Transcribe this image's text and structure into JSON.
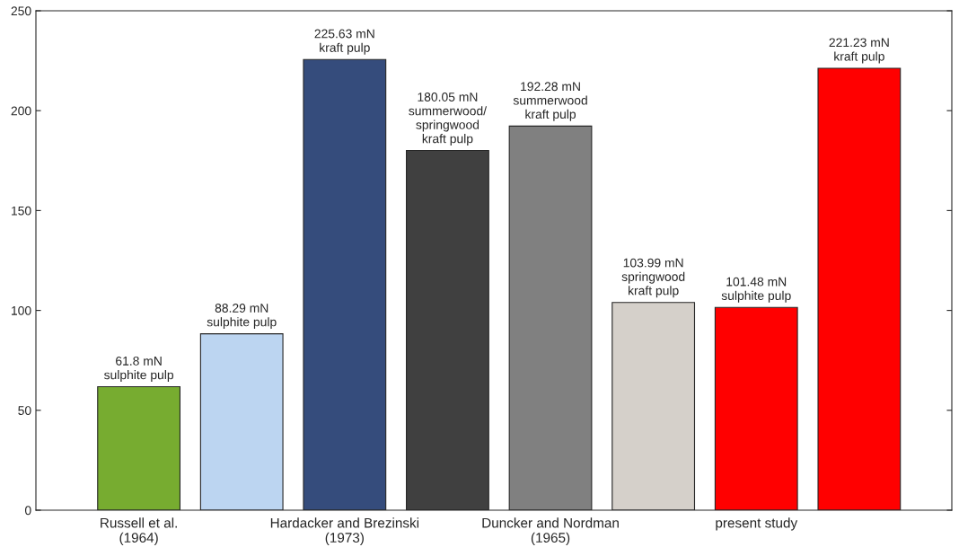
{
  "chart_data": {
    "type": "bar",
    "categories": [
      "Russell et al.\n(1964)",
      null,
      "Hardacker and Brezinski\n(1973)",
      null,
      "Duncker and Nordman\n(1965)",
      null,
      "present study",
      null
    ],
    "values": [
      61.8,
      88.29,
      225.63,
      180.05,
      192.28,
      103.99,
      101.48,
      221.23
    ],
    "colors": [
      "#77ac30",
      "#bcd5f1",
      "#354c7c",
      "#404040",
      "#808080",
      "#d5d0ca",
      "#ff0000",
      "#ff0000"
    ],
    "value_labels": [
      "61.8 mN\nsulphite pulp",
      "88.29 mN\nsulphite pulp",
      "225.63 mN\nkraft pulp",
      "180.05 mN\nsummerwood/\nspringwood\nkraft pulp",
      "192.28 mN\nsummerwood\nkraft pulp",
      "103.99 mN\nspringwood\nkraft pulp",
      "101.48 mN\nsulphite pulp",
      "221.23 mN\nkraft pulp"
    ],
    "ylim": [
      0,
      250
    ],
    "yticks": [
      0,
      50,
      100,
      150,
      200,
      250
    ],
    "grid": false
  }
}
